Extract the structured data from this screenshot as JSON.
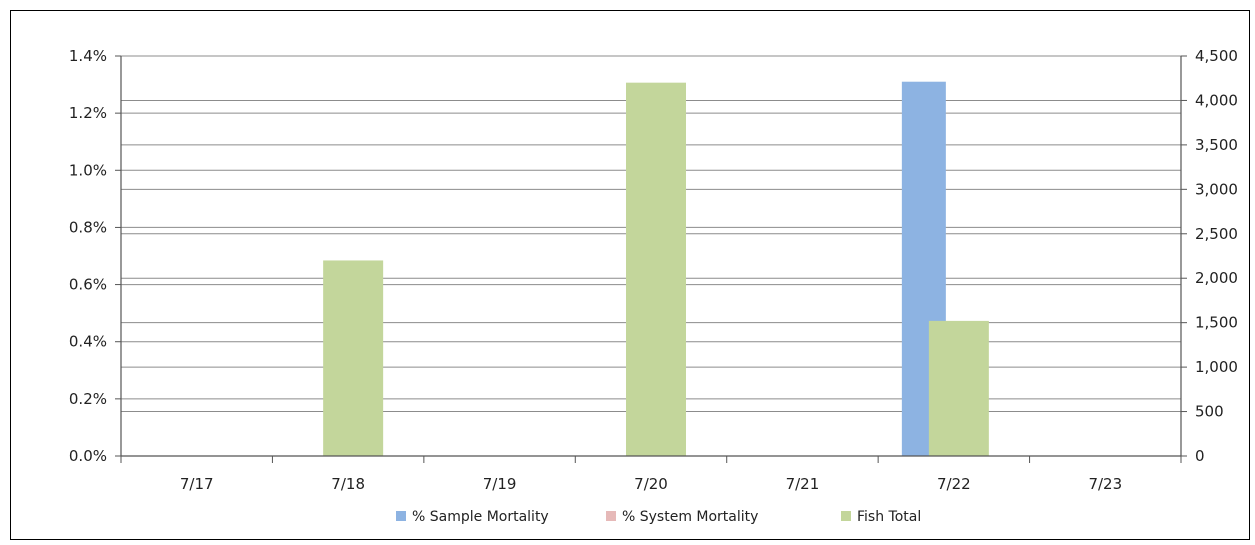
{
  "chart_data": {
    "type": "bar",
    "title": "",
    "xlabel": "",
    "ylabel_left": "",
    "ylabel_right": "",
    "categories": [
      "7/17",
      "7/18",
      "7/19",
      "7/20",
      "7/21",
      "7/22",
      "7/23"
    ],
    "ylim_left": [
      0,
      1.4
    ],
    "yticks_left": [
      "0.0%",
      "0.2%",
      "0.4%",
      "0.6%",
      "0.8%",
      "1.0%",
      "1.2%",
      "1.4%"
    ],
    "ylim_right": [
      0,
      4500
    ],
    "yticks_right": [
      "0",
      "500",
      "1,000",
      "1,500",
      "2,000",
      "2,500",
      "3,000",
      "3,500",
      "4,000",
      "4,500"
    ],
    "grid": true,
    "legend_position": "bottom",
    "series": [
      {
        "name": "% Sample Mortality",
        "axis": "left",
        "unit": "percent",
        "color": "#8db3e2",
        "values": [
          0,
          0,
          0,
          0,
          0,
          1.31,
          0
        ]
      },
      {
        "name": "% System Mortality",
        "axis": "left",
        "unit": "percent",
        "color": "#e6b9b8",
        "values": [
          0,
          0,
          0,
          0.02,
          0,
          0.06,
          0
        ]
      },
      {
        "name": "Fish Total",
        "axis": "right",
        "unit": "count",
        "color": "#c3d69b",
        "values": [
          0,
          2200,
          0,
          4200,
          0,
          1520,
          0
        ]
      }
    ]
  }
}
